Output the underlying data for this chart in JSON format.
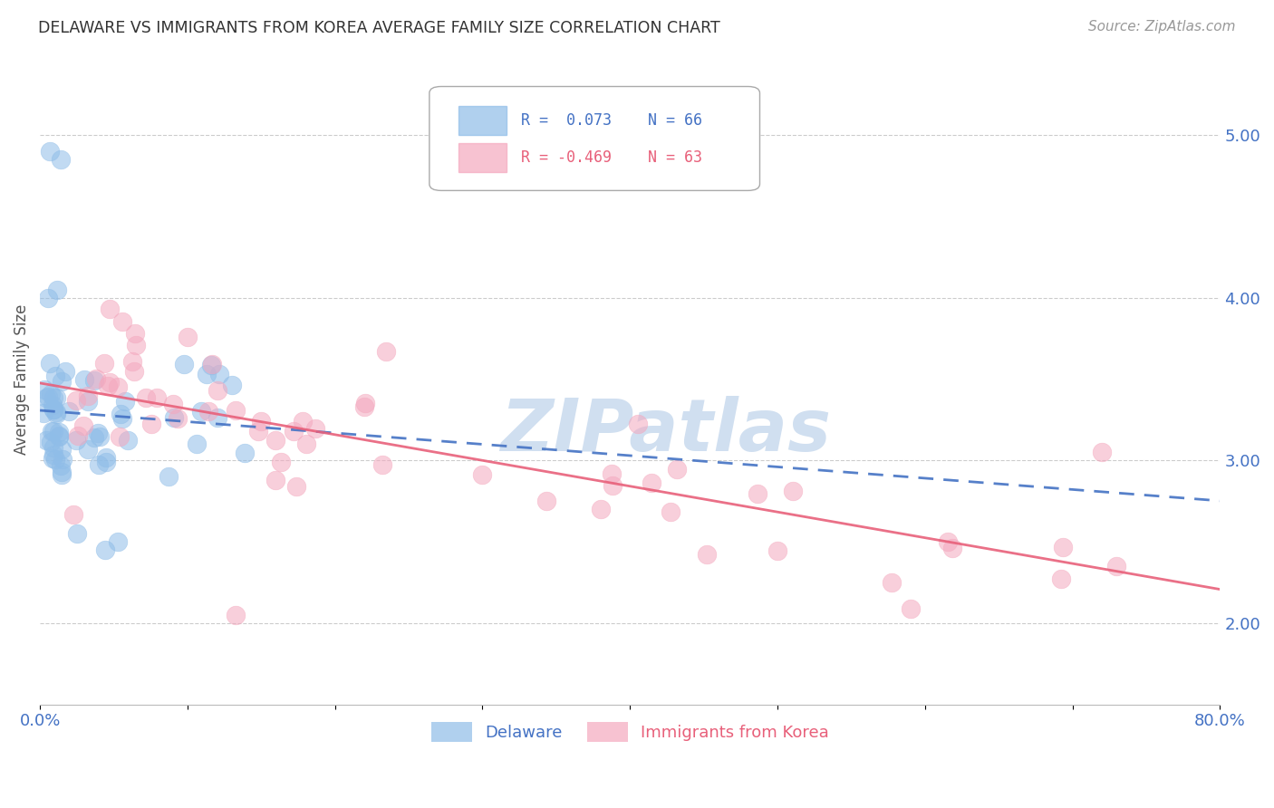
{
  "title": "DELAWARE VS IMMIGRANTS FROM KOREA AVERAGE FAMILY SIZE CORRELATION CHART",
  "source": "Source: ZipAtlas.com",
  "ylabel": "Average Family Size",
  "yticks": [
    2.0,
    3.0,
    4.0,
    5.0
  ],
  "xlim": [
    0.0,
    0.8
  ],
  "ylim": [
    1.5,
    5.5
  ],
  "blue_R": 0.073,
  "blue_N": 66,
  "pink_R": -0.469,
  "pink_N": 63,
  "blue_color": "#8fbde8",
  "pink_color": "#f4a8be",
  "blue_line_color": "#4472c4",
  "pink_line_color": "#e8607a",
  "watermark": "ZIPatlas",
  "watermark_color": "#d0dff0",
  "legend_blue_label": "Delaware",
  "legend_pink_label": "Immigrants from Korea"
}
